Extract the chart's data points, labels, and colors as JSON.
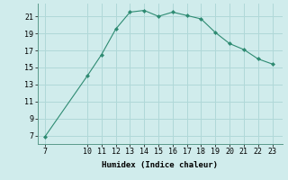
{
  "x": [
    7,
    10,
    11,
    12,
    13,
    14,
    15,
    16,
    17,
    18,
    19,
    20,
    21,
    22,
    23
  ],
  "y": [
    6.8,
    14.0,
    16.5,
    19.5,
    21.5,
    21.7,
    21.0,
    21.5,
    21.1,
    20.7,
    19.1,
    17.8,
    17.1,
    16.0,
    15.4
  ],
  "line_color": "#2e8b72",
  "marker_color": "#2e8b72",
  "bg_color": "#d0ecec",
  "grid_color": "#b0d8d8",
  "xlabel": "Humidex (Indice chaleur)",
  "xticks": [
    7,
    10,
    11,
    12,
    13,
    14,
    15,
    16,
    17,
    18,
    19,
    20,
    21,
    22,
    23
  ],
  "yticks": [
    7,
    9,
    11,
    13,
    15,
    17,
    19,
    21
  ],
  "xlim": [
    6.5,
    23.7
  ],
  "ylim": [
    6.0,
    22.5
  ],
  "label_fontsize": 6.5,
  "tick_fontsize": 6.0
}
